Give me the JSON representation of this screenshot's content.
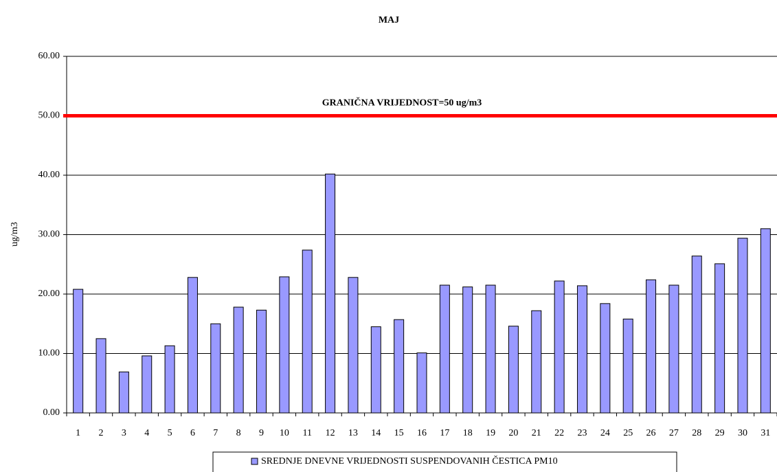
{
  "chart_data": {
    "type": "bar",
    "title": "MAJ",
    "y_label": "ug/m3",
    "categories": [
      "1",
      "2",
      "3",
      "4",
      "5",
      "6",
      "7",
      "8",
      "9",
      "10",
      "11",
      "12",
      "13",
      "14",
      "15",
      "16",
      "17",
      "18",
      "19",
      "20",
      "21",
      "22",
      "23",
      "24",
      "25",
      "26",
      "27",
      "28",
      "29",
      "30",
      "31"
    ],
    "series": [
      {
        "name": "SREDNJE DNEVNE VRIJEDNOSTI SUSPENDOVANIH ČESTICA PM10",
        "color": "#9999ff",
        "values": [
          20.8,
          12.5,
          6.9,
          9.6,
          11.3,
          22.8,
          15.0,
          17.8,
          17.3,
          22.9,
          27.4,
          40.2,
          22.8,
          14.5,
          15.7,
          10.1,
          21.5,
          21.2,
          21.5,
          14.6,
          17.2,
          22.2,
          21.4,
          18.4,
          15.8,
          22.4,
          21.5,
          26.4,
          25.1,
          29.4,
          31.0
        ]
      }
    ],
    "threshold": {
      "value": 50,
      "label": "GRANIČNA VRIJEDNOST=50 ug/m3",
      "color": "#ff0000"
    },
    "ylim": [
      0,
      60
    ],
    "yticks": [
      {
        "value": 0,
        "label": "0.00"
      },
      {
        "value": 10,
        "label": "10.00"
      },
      {
        "value": 20,
        "label": "20.00"
      },
      {
        "value": 30,
        "label": "30.00"
      },
      {
        "value": 40,
        "label": "40.00"
      },
      {
        "value": 50,
        "label": "50.00"
      },
      {
        "value": 60,
        "label": "60.00"
      }
    ],
    "grid": true
  }
}
